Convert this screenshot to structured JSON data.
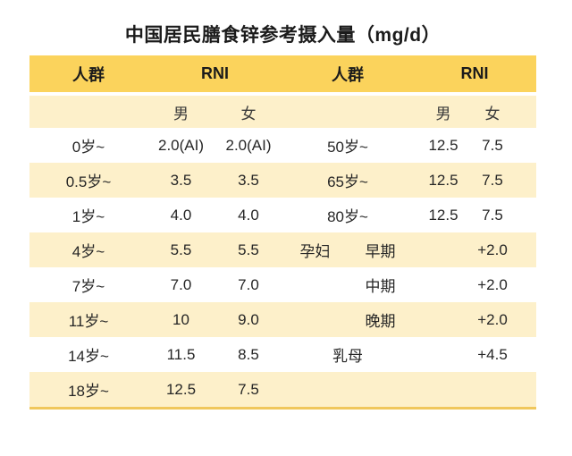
{
  "title": "中国居民膳食锌参考摄入量（mg/d）",
  "colors": {
    "header_bg": "#FBD35C",
    "stripe_bg": "#FDF0CA",
    "border_bottom": "#F0C75C",
    "text": "#262626"
  },
  "header": {
    "group_left": "人群",
    "rni_left": "RNI",
    "group_right": "人群",
    "rni_right": "RNI"
  },
  "subheader": {
    "male_left": "男",
    "female_left": "女",
    "male_right": "男",
    "female_right": "女"
  },
  "rows": [
    {
      "l_age": "0岁~",
      "l_male": "2.0(AI)",
      "l_female": "2.0(AI)",
      "r_group": "50岁~",
      "r_sub": "",
      "r_male": "12.5",
      "r_female": "7.5"
    },
    {
      "l_age": "0.5岁~",
      "l_male": "3.5",
      "l_female": "3.5",
      "r_group": "65岁~",
      "r_sub": "",
      "r_male": "12.5",
      "r_female": "7.5"
    },
    {
      "l_age": "1岁~",
      "l_male": "4.0",
      "l_female": "4.0",
      "r_group": "80岁~",
      "r_sub": "",
      "r_male": "12.5",
      "r_female": "7.5"
    },
    {
      "l_age": "4岁~",
      "l_male": "5.5",
      "l_female": "5.5",
      "r_group": "孕妇",
      "r_sub": "早期",
      "r_male": "",
      "r_female": "+2.0"
    },
    {
      "l_age": "7岁~",
      "l_male": "7.0",
      "l_female": "7.0",
      "r_group": "",
      "r_sub": "中期",
      "r_male": "",
      "r_female": "+2.0"
    },
    {
      "l_age": "11岁~",
      "l_male": "10",
      "l_female": "9.0",
      "r_group": "",
      "r_sub": "晚期",
      "r_male": "",
      "r_female": "+2.0"
    },
    {
      "l_age": "14岁~",
      "l_male": "11.5",
      "l_female": "8.5",
      "r_group": "乳母",
      "r_sub": "",
      "r_male": "",
      "r_female": "+4.5"
    },
    {
      "l_age": "18岁~",
      "l_male": "12.5",
      "l_female": "7.5",
      "r_group": "",
      "r_sub": "",
      "r_male": "",
      "r_female": ""
    }
  ],
  "chart_data": {
    "type": "table",
    "title": "中国居民膳食锌参考摄入量（mg/d）",
    "unit": "mg/d",
    "columns": [
      "人群",
      "RNI 男",
      "RNI 女",
      "人群",
      "RNI 男",
      "RNI 女"
    ],
    "rows": [
      [
        "0岁~",
        "2.0(AI)",
        "2.0(AI)",
        "50岁~",
        "12.5",
        "7.5"
      ],
      [
        "0.5岁~",
        "3.5",
        "3.5",
        "65岁~",
        "12.5",
        "7.5"
      ],
      [
        "1岁~",
        "4.0",
        "4.0",
        "80岁~",
        "12.5",
        "7.5"
      ],
      [
        "4岁~",
        "5.5",
        "5.5",
        "孕妇 早期",
        "",
        "+2.0"
      ],
      [
        "7岁~",
        "7.0",
        "7.0",
        "中期",
        "",
        "+2.0"
      ],
      [
        "11岁~",
        "10",
        "9.0",
        "晚期",
        "",
        "+2.0"
      ],
      [
        "14岁~",
        "11.5",
        "8.5",
        "乳母",
        "",
        "+4.5"
      ],
      [
        "18岁~",
        "12.5",
        "7.5",
        "",
        "",
        ""
      ]
    ],
    "layout": {
      "striped": true,
      "header_bg": "#FBD35C",
      "stripe_bg": "#FDF0CA",
      "grid": false
    }
  }
}
